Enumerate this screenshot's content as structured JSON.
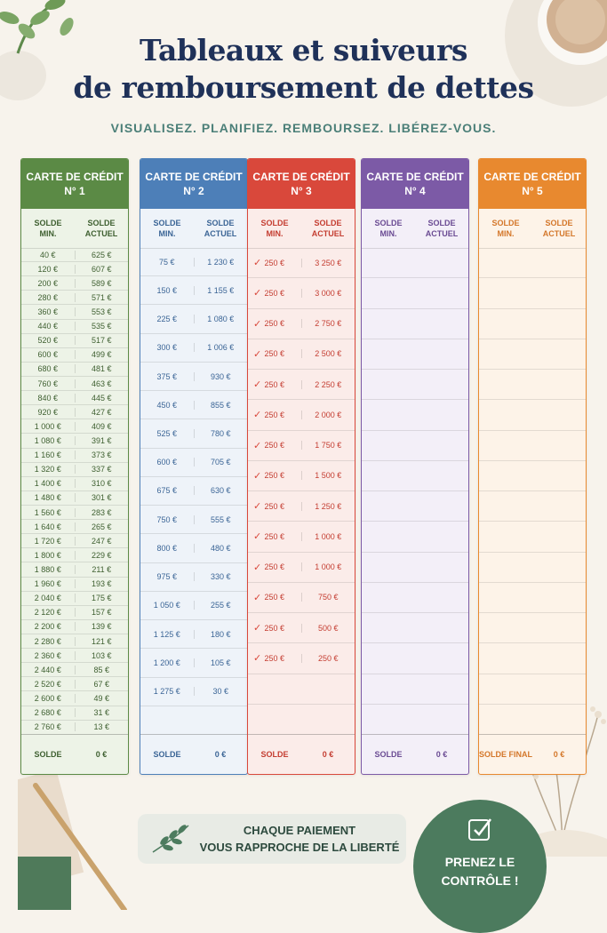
{
  "title_line1": "Tableaux et suiveurs",
  "title_line2": "de remboursement de dettes",
  "subtitle": "VISUALISEZ. PLANIFIEZ. REMBOURSEZ. LIBÉREZ-VOUS.",
  "cards": [
    {
      "title_line1": "CARTE DE CRÉDIT",
      "title_line2": "N° 1",
      "color": "#5b8a45",
      "tint": "#edf3e7",
      "text_color": "#3e5f30",
      "col1_line1": "SOLDE",
      "col1_line2": "MIN.",
      "col2_line1": "SOLDE",
      "col2_line2": "ACTUEL",
      "rows": [
        [
          "40 €",
          "625 €"
        ],
        [
          "120 €",
          "607 €"
        ],
        [
          "200 €",
          "589 €"
        ],
        [
          "280 €",
          "571 €"
        ],
        [
          "360 €",
          "553 €"
        ],
        [
          "440 €",
          "535 €"
        ],
        [
          "520 €",
          "517 €"
        ],
        [
          "600 €",
          "499 €"
        ],
        [
          "680 €",
          "481 €"
        ],
        [
          "760 €",
          "463 €"
        ],
        [
          "840 €",
          "445 €"
        ],
        [
          "920 €",
          "427 €"
        ],
        [
          "1 000 €",
          "409 €"
        ],
        [
          "1 080 €",
          "391 €"
        ],
        [
          "1 160 €",
          "373 €"
        ],
        [
          "1 320 €",
          "337 €"
        ],
        [
          "1 400 €",
          "310 €"
        ],
        [
          "1 480 €",
          "301 €"
        ],
        [
          "1 560 €",
          "283 €"
        ],
        [
          "1 640 €",
          "265 €"
        ],
        [
          "1 720 €",
          "247 €"
        ],
        [
          "1 800 €",
          "229 €"
        ],
        [
          "1 880 €",
          "211 €"
        ],
        [
          "1 960 €",
          "193 €"
        ],
        [
          "2 040 €",
          "175 €"
        ],
        [
          "2 120 €",
          "157 €"
        ],
        [
          "2 200 €",
          "139 €"
        ],
        [
          "2 280 €",
          "121 €"
        ],
        [
          "2 360 €",
          "103 €"
        ],
        [
          "2 440 €",
          "85 €"
        ],
        [
          "2 520 €",
          "67 €"
        ],
        [
          "2 600 €",
          "49 €"
        ],
        [
          "2 680 €",
          "31 €"
        ],
        [
          "2 760 €",
          "13 €"
        ]
      ],
      "foot_label": "SOLDE",
      "foot_value": "0 €"
    },
    {
      "title_line1": "CARTE DE CRÉDIT",
      "title_line2": "N° 2",
      "color": "#4d7fb8",
      "tint": "#eef3f9",
      "text_color": "#3b6596",
      "col1_line1": "SOLDE",
      "col1_line2": "MIN.",
      "col2_line1": "SOLDE",
      "col2_line2": "ACTUEL",
      "rows": [
        [
          "75 €",
          "1 230 €"
        ],
        [
          "150 €",
          "1 155 €"
        ],
        [
          "225 €",
          "1 080 €"
        ],
        [
          "300 €",
          "1 006 €"
        ],
        [
          "375 €",
          "930 €"
        ],
        [
          "450 €",
          "855 €"
        ],
        [
          "525 €",
          "780 €"
        ],
        [
          "600 €",
          "705 €"
        ],
        [
          "675 €",
          "630 €"
        ],
        [
          "750 €",
          "555 €"
        ],
        [
          "800 €",
          "480 €"
        ],
        [
          "975 €",
          "330 €"
        ],
        [
          "1 050 €",
          "255 €"
        ],
        [
          "1 125 €",
          "180 €"
        ],
        [
          "1 200 €",
          "105 €"
        ],
        [
          "1 275 €",
          "30 €"
        ],
        [
          "",
          ""
        ]
      ],
      "foot_label": "SOLDE",
      "foot_value": "0 €"
    },
    {
      "title_line1": "CARTE DE CRÉDIT",
      "title_line2": "N° 3",
      "color": "#d9483b",
      "tint": "#fbece9",
      "text_color": "#c43d31",
      "col1_line1": "SOLDE",
      "col1_line2": "MIN.",
      "col2_line1": "SOLDE",
      "col2_line2": "ACTUEL",
      "rows": [
        [
          "250 €",
          "3 250 €"
        ],
        [
          "250 €",
          "3 000 €"
        ],
        [
          "250 €",
          "2 750 €"
        ],
        [
          "250 €",
          "2 500 €"
        ],
        [
          "250 €",
          "2 250 €"
        ],
        [
          "250 €",
          "2 000 €"
        ],
        [
          "250 €",
          "1 750 €"
        ],
        [
          "250 €",
          "1 500 €"
        ],
        [
          "250 €",
          "1 250 €"
        ],
        [
          "250 €",
          "1 000 €"
        ],
        [
          "250 €",
          "1 000 €"
        ],
        [
          "250 €",
          "750 €"
        ],
        [
          "250 €",
          "500 €"
        ],
        [
          "250 €",
          "250 €"
        ],
        [
          "",
          ""
        ],
        [
          "",
          ""
        ]
      ],
      "foot_label": "SOLDE",
      "foot_value": "0 €"
    },
    {
      "title_line1": "CARTE DE CRÉDIT",
      "title_line2": "N° 4",
      "color": "#7c5aa6",
      "tint": "#f3eff8",
      "text_color": "#6a4b93",
      "col1_line1": "SOLDE",
      "col1_line2": "MIN.",
      "col2_line1": "SOLDE",
      "col2_line2": "ACTUEL",
      "rows": [
        [
          "",
          ""
        ],
        [
          "",
          ""
        ],
        [
          "",
          ""
        ],
        [
          "",
          ""
        ],
        [
          "",
          ""
        ],
        [
          "",
          ""
        ],
        [
          "",
          ""
        ],
        [
          "",
          ""
        ],
        [
          "",
          ""
        ],
        [
          "",
          ""
        ],
        [
          "",
          ""
        ],
        [
          "",
          ""
        ],
        [
          "",
          ""
        ],
        [
          "",
          ""
        ],
        [
          "",
          ""
        ],
        [
          "",
          ""
        ]
      ],
      "foot_label": "SOLDE",
      "foot_value": "0 €"
    },
    {
      "title_line1": "CARTE DE CRÉDIT",
      "title_line2": "N° 5",
      "color": "#e8892f",
      "tint": "#fdf3e8",
      "text_color": "#d4772a",
      "col1_line1": "SOLDE",
      "col1_line2": "MIN.",
      "col2_line1": "SOLDE",
      "col2_line2": "ACTUEL",
      "rows": [
        [
          "",
          ""
        ],
        [
          "",
          ""
        ],
        [
          "",
          ""
        ],
        [
          "",
          ""
        ],
        [
          "",
          ""
        ],
        [
          "",
          ""
        ],
        [
          "",
          ""
        ],
        [
          "",
          ""
        ],
        [
          "",
          ""
        ],
        [
          "",
          ""
        ],
        [
          "",
          ""
        ],
        [
          "",
          ""
        ],
        [
          "",
          ""
        ],
        [
          "",
          ""
        ],
        [
          "",
          ""
        ],
        [
          "",
          ""
        ]
      ],
      "foot_label": "SOLDE FINAL",
      "foot_value": "0 €"
    }
  ],
  "banner_line1": "CHAQUE PAIEMENT",
  "banner_line2": "VOUS RAPPROCHE DE LA LIBERTÉ",
  "badge_line1": "PRENEZ LE",
  "badge_line2": "CONTRÔLE !"
}
